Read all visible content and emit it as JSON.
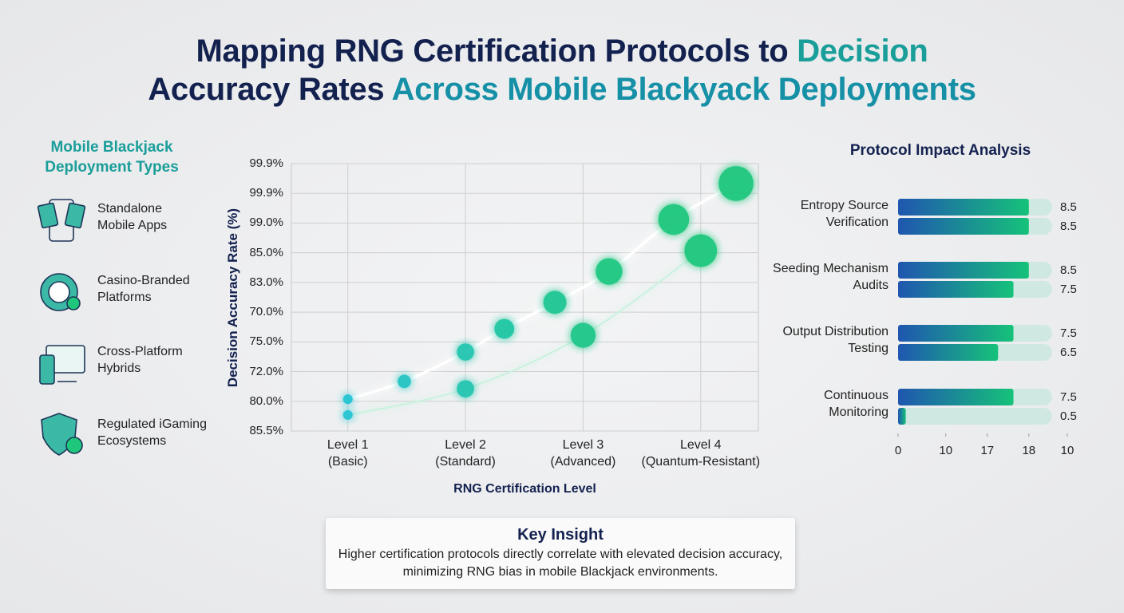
{
  "title": [
    [
      {
        "text": "Mapping RNG Certification Protocols to ",
        "color": "#13214f"
      },
      {
        "text": "Decision",
        "color": "#1a9e9a"
      }
    ],
    [
      {
        "text": "Accuracy Rates ",
        "color": "#13214f"
      },
      {
        "text": "Across Mobile Blackyack Deployments",
        "color": "#1590a6"
      }
    ]
  ],
  "deployment": {
    "heading": "Mobile Blackjack\nDeployment Types",
    "items": [
      "Standalone\nMobile Apps",
      "Casino-Branded\nPlatforms",
      "Cross-Platform\nHybrids",
      "Regulated iGaming\nEcosystems"
    ]
  },
  "chart_data": [
    {
      "type": "scatter",
      "x_label": "RNG Certification Level",
      "y_label": "Decision Accuracy Rate (%)",
      "xlim": [
        0.52,
        4.49
      ],
      "xticks": [
        {
          "value": 1,
          "label": "Level 1\n(Basic)"
        },
        {
          "value": 2,
          "label": "Level 2\n(Standard)"
        },
        {
          "value": 3,
          "label": "Level 3\n(Advanced)"
        },
        {
          "value": 4,
          "label": "Level 4\n(Quantum-Resistant)"
        }
      ],
      "ylim": [
        0,
        9
      ],
      "yticks": [
        {
          "value": 0,
          "label": "85.5%"
        },
        {
          "value": 1,
          "label": "80.0%"
        },
        {
          "value": 2,
          "label": "72.0%"
        },
        {
          "value": 3,
          "label": "75.0%"
        },
        {
          "value": 4,
          "label": "70.0%"
        },
        {
          "value": 5,
          "label": "83.0%"
        },
        {
          "value": 6,
          "label": "85.0%"
        },
        {
          "value": 7,
          "label": "99.0%"
        },
        {
          "value": 8,
          "label": "99.9%"
        },
        {
          "value": 9,
          "label": "99.9%"
        }
      ],
      "grid": true,
      "series": [
        {
          "colors": [
            "#22c3e6",
            "#1ec77c"
          ],
          "x": [
            1,
            1.48,
            2,
            2.33,
            2.76,
            3.22,
            3.77,
            4.3
          ],
          "values": [
            1.07,
            1.67,
            2.66,
            3.44,
            4.33,
            5.37,
            7.12,
            8.33
          ]
        },
        {
          "colors": [
            "#22c3e6",
            "#1ec77c"
          ],
          "x": [
            1,
            2,
            3,
            4
          ],
          "values": [
            0.54,
            1.42,
            3.22,
            6.07
          ]
        }
      ]
    },
    {
      "type": "hbar",
      "title": "Protocol Impact Analysis",
      "categories": [
        "Entropy Source\nVerification",
        "Seeding Mechanism\nAudits",
        "Output Distribution\nTesting",
        "Continuous\nMonitoring"
      ],
      "xlim": [
        0,
        11
      ],
      "xticks": [
        0,
        {
          "value": 3.1,
          "label": "10"
        },
        {
          "value": 5.8,
          "label": "17"
        },
        {
          "value": 8.5,
          "label": "18"
        },
        {
          "value": 11,
          "label": "10"
        }
      ],
      "colors": [
        "#1f56b0",
        "#16c27a"
      ],
      "track_color": "#cfe9e2",
      "series": [
        {
          "values": [
            8.5,
            8.5,
            7.5,
            7.5
          ]
        },
        {
          "values": [
            8.5,
            7.5,
            6.5,
            0.5
          ]
        }
      ]
    }
  ],
  "key_insight": {
    "title": "Key Insight",
    "text": "Higher certification protocols directly correlate with elevated decision accuracy, minimizing RNG bias in mobile Blackjack environments."
  }
}
